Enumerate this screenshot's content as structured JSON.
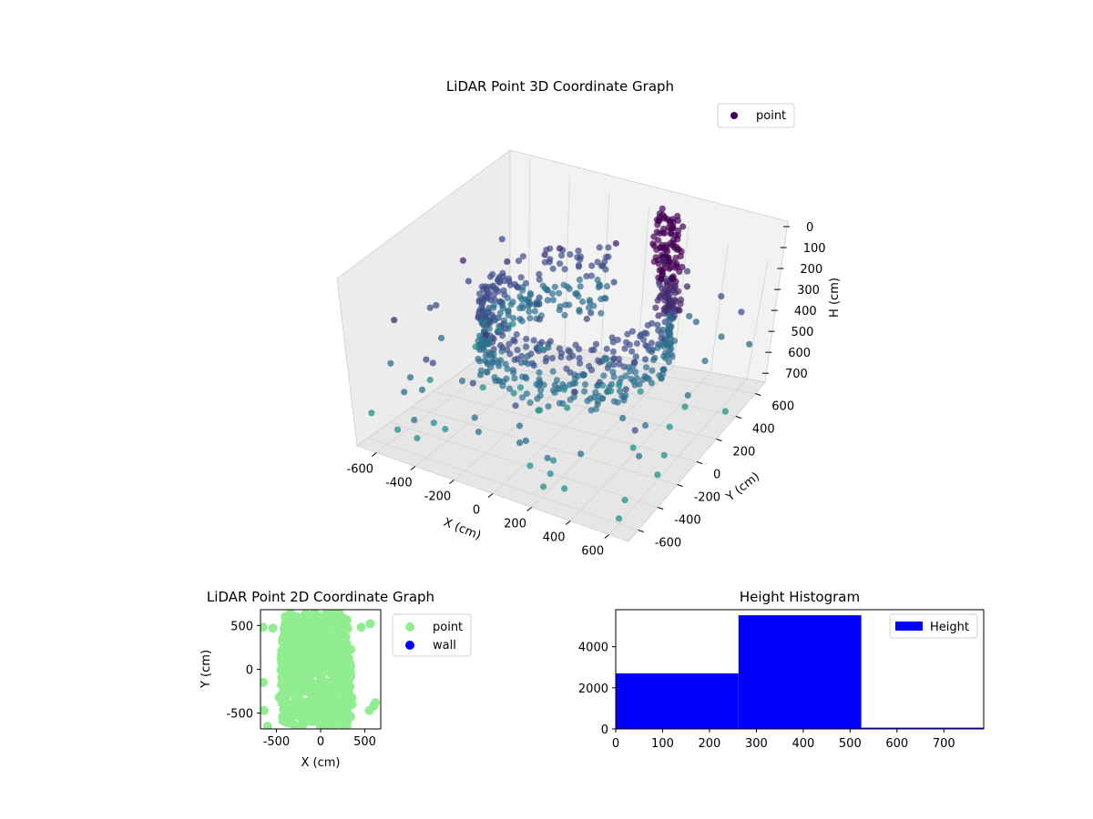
{
  "chart_data": [
    {
      "type": "scatter3d",
      "title": "LiDAR Point 3D Coordinate Graph",
      "xlabel": "X (cm)",
      "ylabel": "Y (cm)",
      "zlabel": "H (cm)",
      "xlim": [
        -700,
        700
      ],
      "ylim": [
        -700,
        700
      ],
      "zlim": [
        0,
        760
      ],
      "z_inverted": true,
      "xticks": [
        -600,
        -400,
        -200,
        0,
        200,
        400,
        600
      ],
      "yticks": [
        -600,
        -400,
        -200,
        0,
        200,
        400,
        600
      ],
      "zticks": [
        0,
        100,
        200,
        300,
        400,
        500,
        600,
        700
      ],
      "grid": true,
      "legend": {
        "position": "top-right",
        "entries": [
          {
            "name": "point",
            "color": "#440154"
          }
        ]
      },
      "colormap": "viridis",
      "series": [
        {
          "name": "point",
          "shape": "cylindrical wall of points, radius about 430 cm, spanning X -500..550, Y -500..650, height 250..520 cm, with a tall vertical cluster near X 300, Y 400 and scattered outliers",
          "sample_points": [
            [
              -650,
              -300,
              600
            ],
            [
              -520,
              -420,
              580
            ],
            [
              -300,
              -600,
              620
            ],
            [
              -100,
              -650,
              560
            ],
            [
              150,
              -620,
              640
            ],
            [
              350,
              -500,
              590
            ],
            [
              520,
              -300,
              610
            ],
            [
              600,
              100,
              560
            ],
            [
              560,
              350,
              540
            ],
            [
              420,
              520,
              480
            ],
            [
              200,
              600,
              300
            ],
            [
              -50,
              580,
              260
            ],
            [
              -300,
              480,
              280
            ],
            [
              -480,
              300,
              300
            ],
            [
              -560,
              80,
              320
            ],
            [
              -600,
              -150,
              350
            ],
            [
              650,
              550,
              420
            ],
            [
              600,
              -600,
              740
            ],
            [
              -700,
              600,
              700
            ],
            [
              300,
              650,
              350
            ]
          ]
        }
      ]
    },
    {
      "type": "scatter",
      "title": "LiDAR Point 2D Coordinate Graph",
      "xlabel": "X (cm)",
      "ylabel": "Y (cm)",
      "xlim": [
        -680,
        680
      ],
      "ylim": [
        -680,
        680
      ],
      "xticks": [
        -500,
        0,
        500
      ],
      "yticks": [
        -500,
        0,
        500
      ],
      "legend": {
        "position": "right-outside",
        "entries": [
          {
            "name": "point",
            "color": "#90ee90"
          },
          {
            "name": "wall",
            "color": "#0000ff"
          }
        ]
      },
      "series": [
        {
          "name": "point",
          "color": "#90ee90",
          "description": "dense filled region roughly X -550..450, Y -650..650 plus edge points"
        },
        {
          "name": "wall",
          "color": "#0000ff",
          "values": []
        }
      ]
    },
    {
      "type": "bar",
      "title": "Height Histogram",
      "xlabel": "",
      "ylabel": "",
      "xlim": [
        0,
        785
      ],
      "ylim": [
        0,
        5800
      ],
      "xticks": [
        0,
        100,
        200,
        300,
        400,
        500,
        600,
        700
      ],
      "yticks": [
        0,
        2000,
        4000
      ],
      "legend": {
        "position": "top-right",
        "entries": [
          {
            "name": "Height",
            "color": "#0000ff"
          }
        ]
      },
      "bins": [
        {
          "x0": 0,
          "x1": 262,
          "count": 2700
        },
        {
          "x0": 262,
          "x1": 524,
          "count": 5530
        },
        {
          "x0": 524,
          "x1": 785,
          "count": 60
        }
      ],
      "color": "#0000ff"
    }
  ]
}
